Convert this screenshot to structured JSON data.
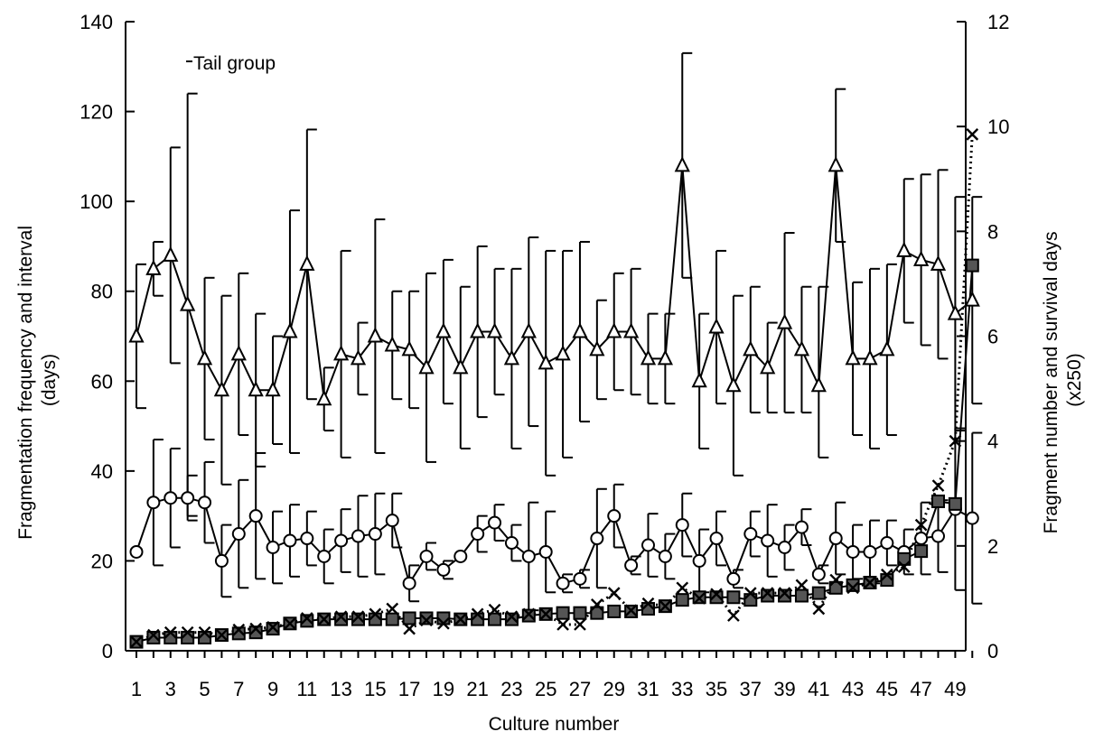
{
  "chart_data": {
    "type": "line",
    "title": "",
    "xlabel": "Culture number",
    "ylabel_left": "Fragmentation frequency and interval (days)",
    "ylabel_left_lines": [
      "Fragmentation frequency and interval",
      "(days)"
    ],
    "ylabel_right": "Fragment number and survival days (x250)",
    "ylabel_right_lines": [
      "Fragment number and survival days",
      "(x250)"
    ],
    "annotation": "Tail group",
    "x_range": [
      1,
      50
    ],
    "x_ticks": [
      1,
      3,
      5,
      7,
      9,
      11,
      13,
      15,
      17,
      19,
      21,
      23,
      25,
      27,
      29,
      31,
      33,
      35,
      37,
      39,
      41,
      43,
      45,
      47,
      49
    ],
    "y_left_range": [
      0,
      140
    ],
    "y_left_ticks": [
      0,
      20,
      40,
      60,
      80,
      100,
      120,
      140
    ],
    "y_right_range": [
      0,
      12
    ],
    "y_right_ticks": [
      0,
      2,
      4,
      6,
      8,
      10,
      12
    ],
    "grid": false,
    "series": [
      {
        "marker": "triangle",
        "axis": "left",
        "line": "solid",
        "values": [
          70,
          85,
          88,
          77,
          65,
          58,
          66,
          58,
          58,
          71,
          86,
          56,
          66,
          65,
          70,
          68,
          67,
          63,
          71,
          63,
          71,
          71,
          65,
          71,
          64,
          66,
          71,
          67,
          71,
          71,
          65,
          65,
          108,
          60,
          72,
          59,
          67,
          63,
          73,
          67,
          59,
          108,
          65,
          65,
          67,
          89,
          87,
          86,
          75,
          78
        ],
        "error_plus": [
          16,
          6,
          24,
          47,
          18,
          21,
          18,
          17,
          12,
          27,
          30,
          7,
          23,
          8,
          26,
          12,
          13,
          21,
          16,
          18,
          19,
          14,
          20,
          21,
          25,
          23,
          20,
          11,
          13,
          14,
          10,
          10,
          25,
          15,
          17,
          20,
          14,
          10,
          20,
          14,
          22,
          17,
          17,
          20,
          19,
          16,
          19,
          21,
          26,
          23
        ],
        "error_minus": [
          16,
          6,
          24,
          47,
          18,
          21,
          18,
          17,
          12,
          27,
          30,
          7,
          23,
          8,
          26,
          12,
          13,
          21,
          16,
          18,
          19,
          14,
          20,
          21,
          25,
          23,
          20,
          11,
          13,
          14,
          10,
          10,
          25,
          15,
          17,
          20,
          14,
          10,
          20,
          14,
          16,
          17,
          17,
          20,
          19,
          16,
          19,
          21,
          26,
          23
        ]
      },
      {
        "marker": "circle",
        "axis": "left",
        "line": "solid",
        "values": [
          22,
          33,
          34,
          34,
          33,
          20,
          26,
          30,
          23,
          24.5,
          25,
          21,
          24.5,
          25.5,
          26,
          29,
          15,
          21,
          18,
          21,
          26,
          28.5,
          24,
          21,
          22,
          15,
          16,
          25,
          30,
          19,
          23.5,
          21,
          28,
          20,
          25,
          16,
          26,
          24.5,
          23,
          27.5,
          17,
          25,
          22,
          22,
          24,
          22,
          25,
          25.5,
          31.5,
          29.5
        ],
        "error_plus": [
          0,
          14,
          11,
          5,
          9,
          8,
          12,
          14,
          8,
          8,
          6,
          6,
          7,
          9,
          9,
          6,
          4,
          3,
          2,
          0,
          4,
          4,
          4,
          12,
          9,
          2,
          2,
          11,
          7,
          2,
          7,
          5,
          7,
          7,
          6,
          2,
          5,
          8,
          5,
          4,
          2,
          8,
          6,
          7,
          5,
          5,
          8,
          8,
          18,
          19
        ],
        "error_minus": [
          0,
          14,
          11,
          5,
          9,
          8,
          12,
          14,
          8,
          8,
          6,
          6,
          7,
          9,
          9,
          6,
          4,
          3,
          2,
          0,
          4,
          4,
          4,
          12,
          9,
          2,
          2,
          11,
          7,
          2,
          7,
          5,
          7,
          7,
          6,
          2,
          5,
          8,
          5,
          4,
          2,
          8,
          6,
          7,
          5,
          5,
          8,
          8,
          18,
          19
        ]
      },
      {
        "marker": "filled-square",
        "axis": "right",
        "line": "solid",
        "values": [
          0.17,
          0.25,
          0.25,
          0.25,
          0.25,
          0.3,
          0.33,
          0.35,
          0.42,
          0.52,
          0.57,
          0.6,
          0.6,
          0.6,
          0.6,
          0.6,
          0.62,
          0.62,
          0.62,
          0.6,
          0.6,
          0.6,
          0.6,
          0.67,
          0.7,
          0.72,
          0.72,
          0.72,
          0.75,
          0.75,
          0.8,
          0.85,
          0.97,
          1.02,
          1.02,
          1.02,
          0.97,
          1.05,
          1.05,
          1.05,
          1.1,
          1.2,
          1.25,
          1.3,
          1.35,
          1.75,
          1.9,
          2.85,
          2.8,
          7.35
        ]
      },
      {
        "marker": "x",
        "axis": "right",
        "line": "dotted",
        "values": [
          0.17,
          0.3,
          0.35,
          0.35,
          0.35,
          0.3,
          0.4,
          0.42,
          0.45,
          0.52,
          0.62,
          0.6,
          0.65,
          0.65,
          0.7,
          0.8,
          0.42,
          0.58,
          0.52,
          0.6,
          0.7,
          0.78,
          0.65,
          0.7,
          0.7,
          0.5,
          0.5,
          0.88,
          1.1,
          0.77,
          0.9,
          0.85,
          1.2,
          1.0,
          1.08,
          0.67,
          1.1,
          1.1,
          1.1,
          1.25,
          0.8,
          1.35,
          1.2,
          1.3,
          1.45,
          1.6,
          2.4,
          3.15,
          4.0,
          9.85
        ]
      }
    ]
  }
}
